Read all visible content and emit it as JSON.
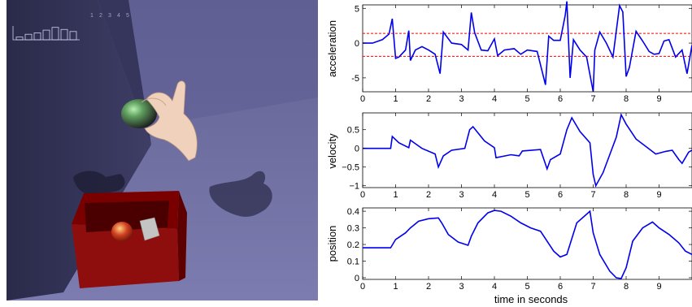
{
  "scene": {
    "hud_labels": [
      "1",
      "2",
      "3",
      "4",
      "5"
    ],
    "histogram_levels": [
      0.2,
      0.4,
      0.5,
      0.7,
      0.9,
      0.75,
      0.6
    ]
  },
  "chart_data": [
    {
      "type": "line",
      "ylabel": "acceleration",
      "xlabel": "",
      "xlim": [
        0,
        10
      ],
      "ylim": [
        -7,
        5.5
      ],
      "yticks": [
        -5,
        0,
        5
      ],
      "xticks": [
        0,
        1,
        2,
        3,
        4,
        5,
        6,
        7,
        8,
        9
      ],
      "reference_lines": [
        1.4,
        -1.9
      ],
      "reference_color": "#ff0000",
      "line_color": "#0000ee",
      "x": [
        0,
        0.3,
        0.6,
        0.8,
        0.9,
        1.0,
        1.1,
        1.3,
        1.4,
        1.45,
        1.6,
        1.8,
        2.0,
        2.2,
        2.35,
        2.45,
        2.7,
        3.0,
        3.2,
        3.3,
        3.4,
        3.6,
        3.8,
        4.0,
        4.1,
        4.3,
        4.6,
        4.8,
        5.0,
        5.3,
        5.55,
        5.65,
        5.8,
        6.0,
        6.15,
        6.2,
        6.3,
        6.4,
        6.6,
        6.8,
        7.0,
        7.05,
        7.2,
        7.4,
        7.6,
        7.8,
        7.9,
        8.0,
        8.1,
        8.3,
        8.5,
        8.7,
        8.85,
        9.0,
        9.15,
        9.3,
        9.5,
        9.7,
        9.85,
        10.0
      ],
      "y": [
        0,
        0,
        0.5,
        1.3,
        3.5,
        -2.2,
        -2.0,
        -1.0,
        1.8,
        -2.5,
        -1.0,
        -0.5,
        -1.0,
        -1.6,
        -4.4,
        1.6,
        0,
        -0.2,
        -1.0,
        4.4,
        1.5,
        -1.0,
        -1.1,
        0.6,
        -1.8,
        -1.0,
        -0.8,
        -1.6,
        -1.0,
        -1.2,
        -6.0,
        1.0,
        0.4,
        0.4,
        4.0,
        6.0,
        -5.0,
        0.5,
        -1.0,
        -2.0,
        -7.0,
        -1.0,
        1.6,
        0,
        -2.0,
        5.4,
        4.5,
        -4.8,
        -3.5,
        1.7,
        0.3,
        -1.2,
        -1.6,
        -1.5,
        0.3,
        0.5,
        -2.0,
        -1.0,
        -4.4,
        -0.3
      ]
    },
    {
      "type": "line",
      "ylabel": "velocity",
      "xlabel": "",
      "xlim": [
        0,
        10
      ],
      "ylim": [
        -1.05,
        0.95
      ],
      "yticks": [
        -1,
        -0.5,
        0,
        0.5
      ],
      "ytick_labels": [
        "−1",
        "−0.5",
        "0",
        "0.5"
      ],
      "xticks": [
        0,
        1,
        2,
        3,
        4,
        5,
        6,
        7,
        8,
        9
      ],
      "line_color": "#0000ee",
      "x": [
        0,
        0.85,
        0.9,
        1.1,
        1.4,
        1.45,
        1.8,
        2.2,
        2.3,
        2.45,
        2.7,
        3.1,
        3.25,
        3.35,
        3.7,
        4.0,
        4.05,
        4.5,
        4.75,
        4.85,
        5.4,
        5.6,
        5.7,
        6.0,
        6.2,
        6.35,
        6.6,
        6.9,
        7.0,
        7.08,
        7.3,
        7.7,
        7.85,
        8.0,
        8.3,
        8.6,
        8.9,
        9.2,
        9.4,
        9.6,
        9.7,
        9.9,
        10.0
      ],
      "y": [
        0,
        0,
        0.32,
        0.15,
        0.02,
        0.22,
        0.0,
        -0.15,
        -0.5,
        -0.2,
        -0.05,
        0.0,
        0.5,
        0.58,
        0.2,
        0.02,
        -0.25,
        -0.17,
        -0.2,
        -0.07,
        -0.03,
        -0.55,
        -0.3,
        -0.15,
        0.5,
        0.82,
        0.45,
        0.15,
        -0.7,
        -1.0,
        -0.65,
        0.3,
        0.9,
        0.65,
        0.25,
        0.05,
        -0.15,
        -0.08,
        -0.05,
        -0.3,
        -0.4,
        -0.1,
        -0.05
      ]
    },
    {
      "type": "line",
      "ylabel": "position",
      "xlabel": "time in seconds",
      "xlim": [
        0,
        10
      ],
      "ylim": [
        -0.01,
        0.42
      ],
      "yticks": [
        0,
        0.1,
        0.2,
        0.3,
        0.4
      ],
      "xticks": [
        0,
        1,
        2,
        3,
        4,
        5,
        6,
        7,
        8,
        9
      ],
      "line_color": "#0000ee",
      "x": [
        0,
        0.3,
        0.6,
        0.85,
        1.0,
        1.3,
        1.45,
        1.7,
        2.0,
        2.3,
        2.4,
        2.6,
        2.9,
        3.2,
        3.3,
        3.5,
        3.8,
        4.0,
        4.2,
        4.5,
        4.8,
        5.1,
        5.4,
        5.6,
        5.8,
        6.0,
        6.2,
        6.5,
        6.9,
        7.0,
        7.2,
        7.5,
        7.7,
        7.85,
        8.0,
        8.2,
        8.5,
        8.8,
        9.0,
        9.3,
        9.6,
        9.8,
        10.0
      ],
      "y": [
        0.18,
        0.18,
        0.18,
        0.18,
        0.23,
        0.27,
        0.3,
        0.34,
        0.355,
        0.36,
        0.33,
        0.26,
        0.215,
        0.195,
        0.25,
        0.33,
        0.39,
        0.405,
        0.4,
        0.37,
        0.33,
        0.3,
        0.28,
        0.22,
        0.16,
        0.125,
        0.14,
        0.33,
        0.4,
        0.27,
        0.14,
        0.04,
        0.0,
        -0.005,
        0.06,
        0.22,
        0.3,
        0.335,
        0.3,
        0.26,
        0.21,
        0.16,
        0.14
      ]
    }
  ]
}
